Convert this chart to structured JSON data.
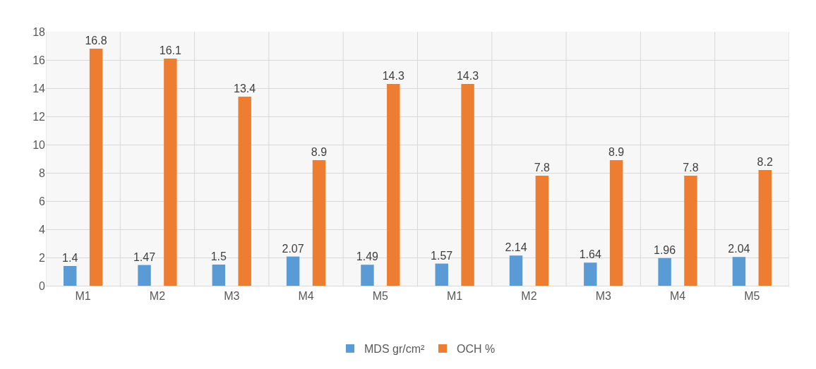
{
  "chart_data": {
    "type": "bar",
    "categories": [
      "M1",
      "M2",
      "M3",
      "M4",
      "M5",
      "M1",
      "M2",
      "M3",
      "M4",
      "M5"
    ],
    "series": [
      {
        "name": "MDS gr/cm²",
        "color": "#5b9bd5",
        "values": [
          1.4,
          1.47,
          1.5,
          2.07,
          1.49,
          1.57,
          2.14,
          1.64,
          1.96,
          2.04
        ]
      },
      {
        "name": "OCH %",
        "color": "#ed7d31",
        "values": [
          16.8,
          16.1,
          13.4,
          8.9,
          14.3,
          14.3,
          7.8,
          8.9,
          7.8,
          8.2
        ]
      }
    ],
    "ylim": [
      0,
      18
    ],
    "yticks": [
      0,
      2,
      4,
      6,
      8,
      10,
      12,
      14,
      16,
      18
    ],
    "grid": true,
    "legend": "bottom",
    "data_labels": true
  }
}
